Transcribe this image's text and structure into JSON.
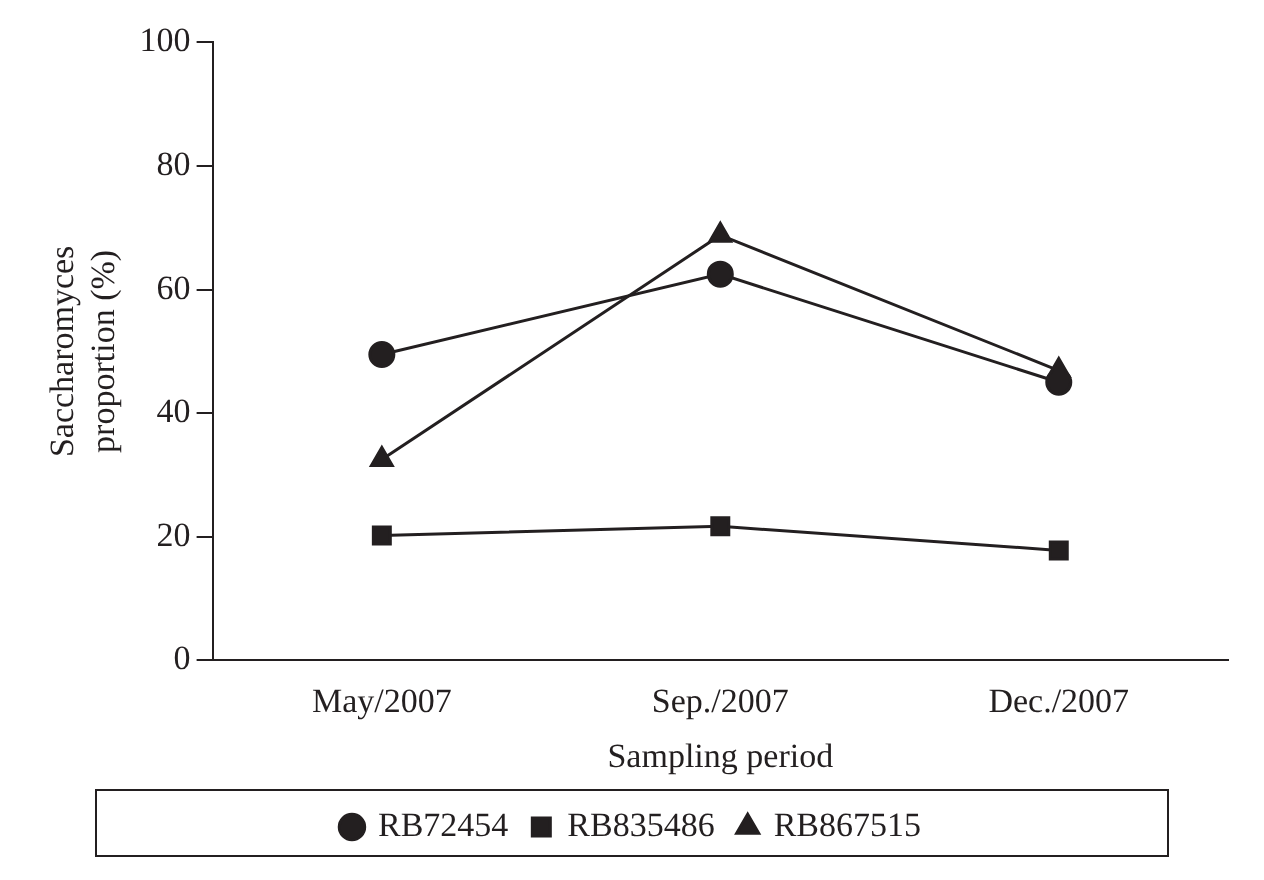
{
  "chart_data": {
    "type": "line",
    "xlabel": "Sampling period",
    "ylabel": "Saccharomyces proportion (%)",
    "categories": [
      "May/2007",
      "Sep./2007",
      "Dec./2007"
    ],
    "series": [
      {
        "name": "RB72454",
        "color": "#231f20",
        "marker": "circle",
        "values": [
          49.5,
          62.5,
          45
        ]
      },
      {
        "name": "RB835486",
        "color": "#231f20",
        "marker": "square",
        "values": [
          20.2,
          21.7,
          17.8
        ]
      },
      {
        "name": "RB867515",
        "color": "#231f20",
        "marker": "triangle",
        "values": [
          32.5,
          68.8,
          46.9
        ]
      }
    ],
    "ylim": [
      0,
      100
    ],
    "yticks": [
      0,
      20,
      40,
      60,
      80,
      100
    ],
    "grid": false,
    "legend": "bottom",
    "line_style": "solid"
  }
}
